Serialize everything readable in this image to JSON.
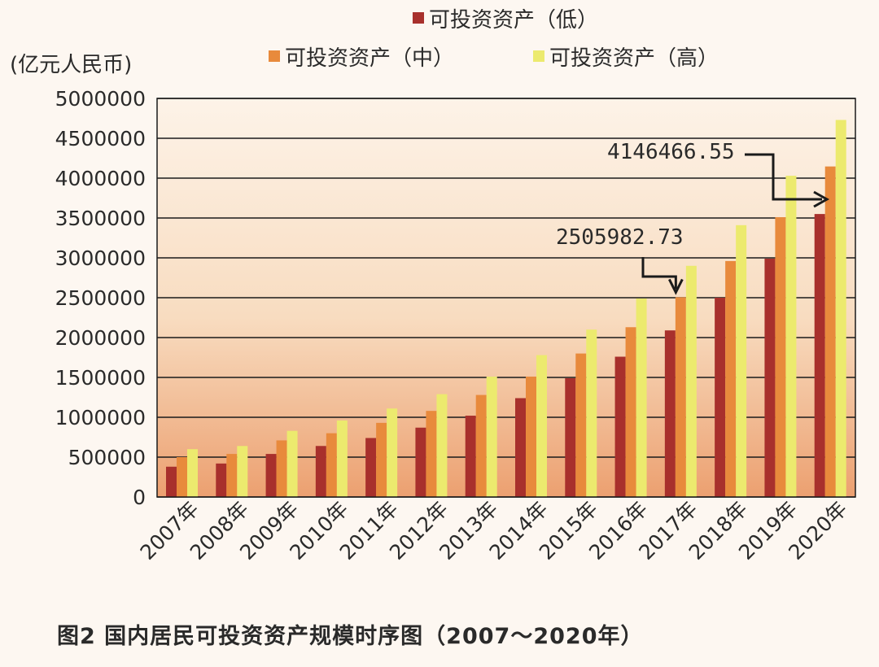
{
  "caption": "图2  国内居民可投资资产规模时序图（2007～2020年）",
  "chart_data": {
    "type": "bar",
    "unit_label": "(亿元人民币)",
    "categories": [
      "2007年",
      "2008年",
      "2009年",
      "2010年",
      "2011年",
      "2012年",
      "2013年",
      "2014年",
      "2015年",
      "2016年",
      "2017年",
      "2018年",
      "2019年",
      "2020年"
    ],
    "series": [
      {
        "name": "可投资资产（低）",
        "color": "#a8302c",
        "values": [
          380000,
          420000,
          540000,
          640000,
          740000,
          870000,
          1020000,
          1240000,
          1490000,
          1760000,
          2090000,
          2500000,
          2990000,
          3550000
        ]
      },
      {
        "name": "可投资资产（中）",
        "color": "#e88a3c",
        "values": [
          500000,
          540000,
          710000,
          800000,
          930000,
          1080000,
          1280000,
          1510000,
          1800000,
          2130000,
          2505982.73,
          2960000,
          3510000,
          4146466.55
        ]
      },
      {
        "name": "可投资资产（高）",
        "color": "#ecea6e",
        "values": [
          600000,
          640000,
          830000,
          960000,
          1110000,
          1290000,
          1510000,
          1780000,
          2100000,
          2490000,
          2900000,
          3410000,
          4030000,
          4730000
        ]
      }
    ],
    "yticks": [
      "0",
      "500000",
      "1000000",
      "1500000",
      "2000000",
      "2500000",
      "3000000",
      "3500000",
      "4000000",
      "4500000",
      "5000000"
    ],
    "ylim": [
      0,
      5000000
    ],
    "grid": true,
    "legend_position": "top",
    "annotations": [
      {
        "text": "2505982.73",
        "category": "2017年",
        "series": 1,
        "value": 2505982.73
      },
      {
        "text": "4146466.55",
        "category": "2020年",
        "series": 1,
        "value": 4146466.55
      }
    ]
  }
}
